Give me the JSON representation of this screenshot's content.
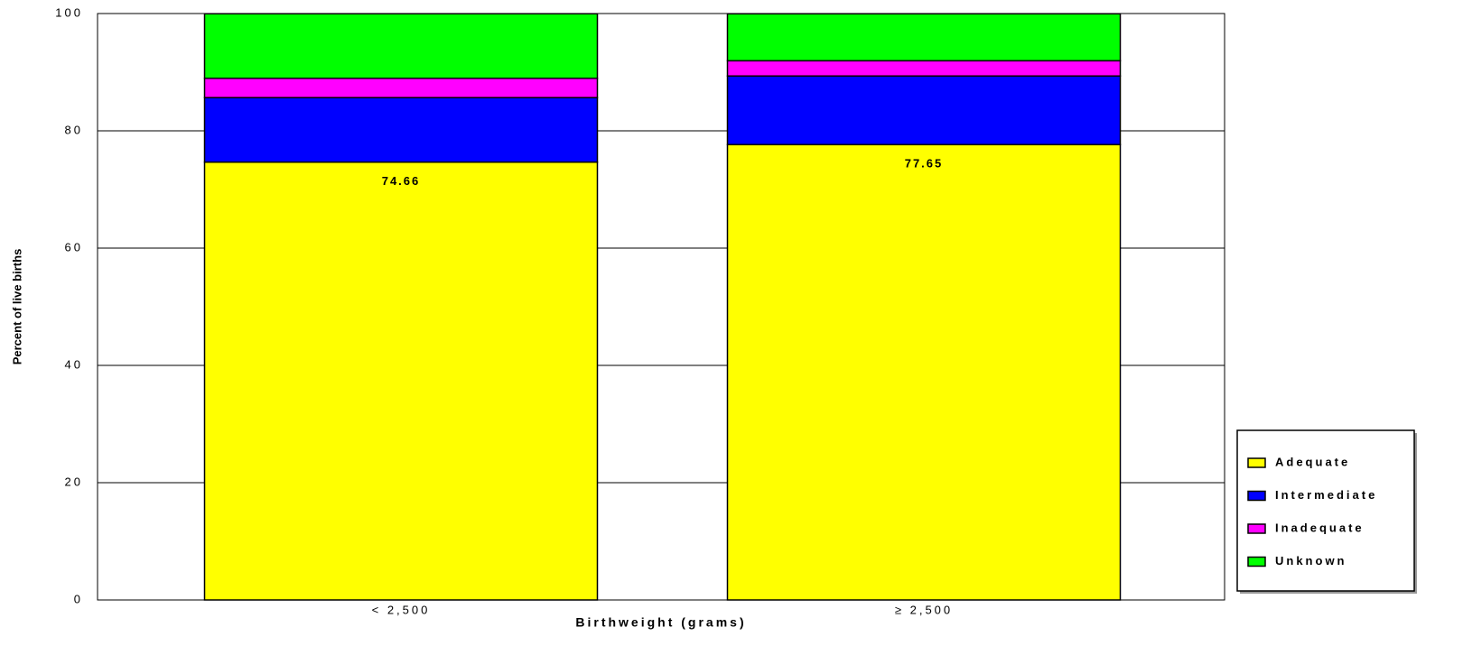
{
  "chart_data": {
    "type": "stacked_bar",
    "x_label": "Birthweight (grams)",
    "y_label": "Percent of live births",
    "categories": [
      "< 2,500",
      "≥ 2,500"
    ],
    "series": [
      {
        "name": "Adequate",
        "color": "#ffff00",
        "values": [
          74.66,
          77.65
        ],
        "show_labels": true
      },
      {
        "name": "Intermediate",
        "color": "#0000ff",
        "values": [
          11.0,
          11.7
        ]
      },
      {
        "name": "Inadequate",
        "color": "#ff00ff",
        "values": [
          3.3,
          2.6
        ]
      },
      {
        "name": "Unknown",
        "color": "#00ff00",
        "values": [
          11.0,
          8.0
        ]
      }
    ],
    "ylim": [
      0,
      100
    ],
    "yticks": [
      0,
      20,
      40,
      60,
      80,
      100
    ],
    "grid": true,
    "legend": "bottom-right"
  }
}
